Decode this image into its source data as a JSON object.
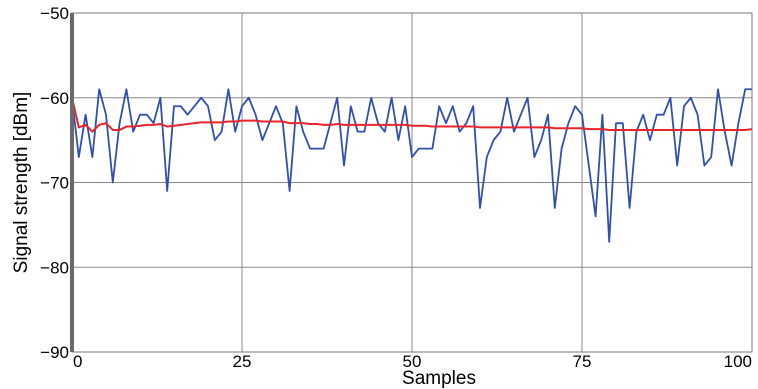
{
  "chart_data": {
    "type": "line",
    "title": "",
    "xlabel": "Samples",
    "ylabel": "Signal strength [dBm]",
    "xlim": [
      0,
      100
    ],
    "ylim": [
      -90,
      -50
    ],
    "xticks": [
      0,
      25,
      50,
      75,
      100
    ],
    "yticks": [
      -90,
      -80,
      -70,
      -60,
      -50
    ],
    "xtick_labels": [
      "0",
      "25",
      "50",
      "75",
      "100"
    ],
    "ytick_labels": [
      "−90",
      "−80",
      "−70",
      "−60",
      "−50"
    ],
    "grid": true,
    "x": [
      0,
      1,
      2,
      3,
      4,
      5,
      6,
      7,
      8,
      9,
      10,
      11,
      12,
      13,
      14,
      15,
      16,
      17,
      18,
      19,
      20,
      21,
      22,
      23,
      24,
      25,
      26,
      27,
      28,
      29,
      30,
      31,
      32,
      33,
      34,
      35,
      36,
      37,
      38,
      39,
      40,
      41,
      42,
      43,
      44,
      45,
      46,
      47,
      48,
      49,
      50,
      51,
      52,
      53,
      54,
      55,
      56,
      57,
      58,
      59,
      60,
      61,
      62,
      63,
      64,
      65,
      66,
      67,
      68,
      69,
      70,
      71,
      72,
      73,
      74,
      75,
      76,
      77,
      78,
      79,
      80,
      81,
      82,
      83,
      84,
      85,
      86,
      87,
      88,
      89,
      90,
      91,
      92,
      93,
      94,
      95,
      96,
      97,
      98,
      99,
      100
    ],
    "series": [
      {
        "color": "#3050b0",
        "values": [
          -60,
          -67,
          -62,
          -67,
          -59,
          -62,
          -70,
          -63,
          -59,
          -64,
          -62,
          -62,
          -63,
          -60,
          -71,
          -61,
          -61,
          -62,
          -61,
          -60,
          -61,
          -65,
          -64,
          -59,
          -64,
          -61,
          -60,
          -62,
          -65,
          -63,
          -61,
          -63,
          -71,
          -61,
          -64,
          -66,
          -66,
          -66,
          -63,
          -60,
          -68,
          -61,
          -64,
          -64,
          -60,
          -63,
          -64,
          -60,
          -65,
          -61,
          -67,
          -66,
          -66,
          -66,
          -61,
          -63,
          -61,
          -64,
          -63,
          -61,
          -73,
          -67,
          -65,
          -64,
          -60,
          -64,
          -62,
          -60,
          -67,
          -65,
          -62,
          -73,
          -66,
          -63,
          -61,
          -62,
          -68,
          -74,
          -62,
          -77,
          -63,
          -63,
          -73,
          -64,
          -62,
          -65,
          -62,
          -62,
          -60,
          -68,
          -61,
          -60,
          -62,
          -68,
          -67,
          -59,
          -64,
          -68,
          -63,
          -59,
          -59
        ]
      },
      {
        "color": "#e8252b",
        "values": [
          -60,
          -63.5,
          -63.2,
          -64,
          -63.2,
          -63,
          -63.8,
          -63.8,
          -63.4,
          -63.4,
          -63.3,
          -63.2,
          -63.2,
          -63.1,
          -63.4,
          -63.3,
          -63.2,
          -63.1,
          -63,
          -62.9,
          -62.9,
          -62.9,
          -62.9,
          -62.8,
          -62.8,
          -62.7,
          -62.7,
          -62.7,
          -62.8,
          -62.8,
          -62.8,
          -62.8,
          -63,
          -63,
          -63,
          -63.1,
          -63.1,
          -63.2,
          -63.2,
          -63.1,
          -63.2,
          -63.2,
          -63.2,
          -63.2,
          -63.2,
          -63.2,
          -63.2,
          -63.2,
          -63.2,
          -63.2,
          -63.3,
          -63.3,
          -63.3,
          -63.4,
          -63.4,
          -63.4,
          -63.4,
          -63.4,
          -63.4,
          -63.4,
          -63.5,
          -63.5,
          -63.5,
          -63.5,
          -63.5,
          -63.5,
          -63.5,
          -63.5,
          -63.5,
          -63.5,
          -63.5,
          -63.6,
          -63.6,
          -63.6,
          -63.6,
          -63.6,
          -63.7,
          -63.7,
          -63.7,
          -63.8,
          -63.8,
          -63.8,
          -63.8,
          -63.8,
          -63.8,
          -63.8,
          -63.8,
          -63.8,
          -63.8,
          -63.8,
          -63.8,
          -63.8,
          -63.8,
          -63.8,
          -63.8,
          -63.8,
          -63.8,
          -63.8,
          -63.8,
          -63.8,
          -63.7
        ]
      }
    ]
  }
}
